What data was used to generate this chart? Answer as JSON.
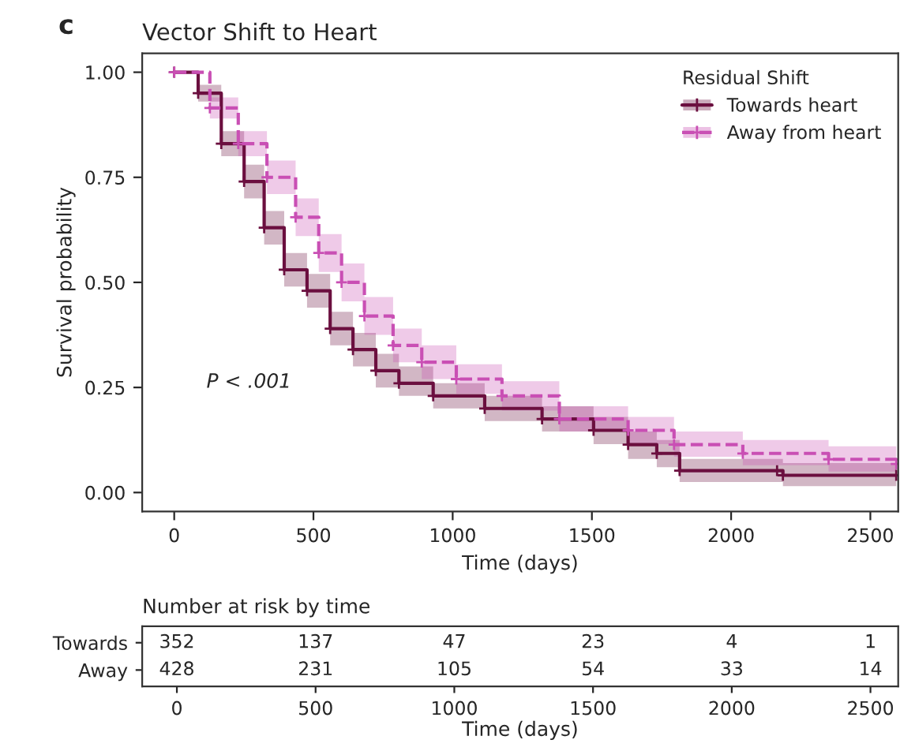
{
  "chart_data": [
    {
      "type": "step",
      "title": "Vector Shift to Heart",
      "xlabel": "Time (days)",
      "ylabel": "Survival probability",
      "legend_title": "Residual Shift",
      "legend": "top right",
      "grid": false,
      "marker": "cross",
      "annotations": [
        "c",
        "P < .001"
      ],
      "xlim": [
        -115,
        2600
      ],
      "xticks": [
        0,
        500,
        1000,
        1500,
        2000,
        2500
      ],
      "ylim": [
        -0.045,
        1.045
      ],
      "yticks": [
        {
          "value": 0,
          "label": "0.00"
        },
        {
          "value": 0.25,
          "label": "0.25"
        },
        {
          "value": 0.5,
          "label": "0.50"
        },
        {
          "value": 0.75,
          "label": "0.75"
        },
        {
          "value": 1,
          "label": "1.00"
        }
      ],
      "series": [
        {
          "name": "Towards heart",
          "color": "#6b0f3f",
          "line_style": "solid",
          "x": [
            0,
            86,
            169,
            251,
            323,
            395,
            477,
            560,
            642,
            724,
            807,
            930,
            1115,
            1321,
            1506,
            1630,
            1733,
            1815,
            2165,
            2186,
            2593
          ],
          "values": [
            1.0,
            0.95,
            0.83,
            0.74,
            0.63,
            0.53,
            0.48,
            0.39,
            0.34,
            0.29,
            0.26,
            0.23,
            0.2,
            0.175,
            0.148,
            0.114,
            0.093,
            0.052,
            0.052,
            0.041,
            0.041
          ],
          "lower": [
            1.0,
            0.93,
            0.8,
            0.7,
            0.59,
            0.49,
            0.44,
            0.35,
            0.3,
            0.25,
            0.23,
            0.2,
            0.17,
            0.145,
            0.115,
            0.08,
            0.06,
            0.025,
            0.025,
            0.015,
            0.015
          ],
          "upper": [
            1.0,
            0.97,
            0.86,
            0.78,
            0.67,
            0.57,
            0.52,
            0.43,
            0.38,
            0.33,
            0.3,
            0.26,
            0.23,
            0.205,
            0.18,
            0.145,
            0.125,
            0.08,
            0.08,
            0.07,
            0.07
          ]
        },
        {
          "name": "Away from heart",
          "color": "#c94fb4",
          "line_style": "dashed",
          "x": [
            0,
            128,
            230,
            333,
            436,
            519,
            601,
            683,
            786,
            889,
            1013,
            1177,
            1383,
            1630,
            1795,
            2042,
            2350,
            2593
          ],
          "values": [
            1.0,
            0.915,
            0.83,
            0.75,
            0.655,
            0.57,
            0.5,
            0.42,
            0.35,
            0.31,
            0.27,
            0.23,
            0.175,
            0.148,
            0.114,
            0.093,
            0.079,
            0.068
          ],
          "lower": [
            1.0,
            0.89,
            0.8,
            0.71,
            0.61,
            0.525,
            0.455,
            0.375,
            0.31,
            0.27,
            0.235,
            0.195,
            0.145,
            0.115,
            0.085,
            0.065,
            0.05,
            0.04
          ],
          "upper": [
            1.0,
            0.94,
            0.86,
            0.79,
            0.7,
            0.615,
            0.545,
            0.465,
            0.39,
            0.35,
            0.305,
            0.265,
            0.205,
            0.18,
            0.145,
            0.125,
            0.11,
            0.1
          ]
        }
      ]
    },
    {
      "type": "heatmap",
      "title": "Number at risk by time",
      "xlabel": "Time (days)",
      "categories": [
        "0",
        "500",
        "1000",
        "1500",
        "2000",
        "2500"
      ],
      "y_categories": [
        "Towards",
        "Away"
      ],
      "cells": [
        [
          352,
          137,
          47,
          23,
          4,
          1
        ],
        [
          428,
          231,
          105,
          54,
          33,
          14
        ]
      ],
      "data_labels": true
    }
  ]
}
